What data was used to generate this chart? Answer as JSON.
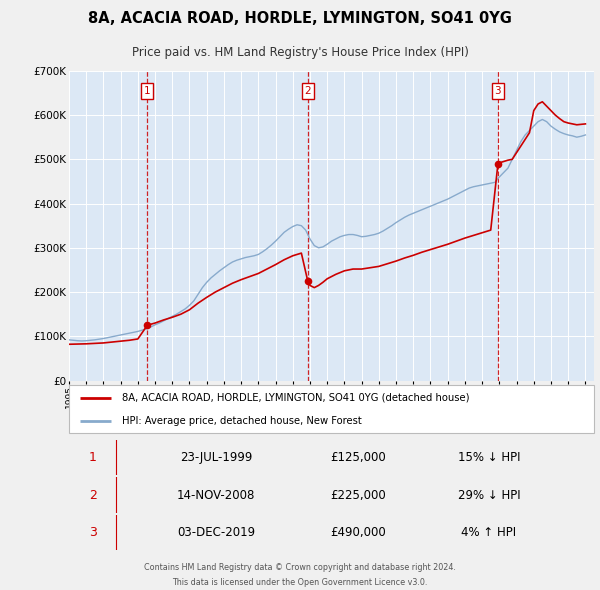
{
  "title": "8A, ACACIA ROAD, HORDLE, LYMINGTON, SO41 0YG",
  "subtitle": "Price paid vs. HM Land Registry's House Price Index (HPI)",
  "ylim": [
    0,
    700000
  ],
  "yticks": [
    0,
    100000,
    200000,
    300000,
    400000,
    500000,
    600000,
    700000
  ],
  "ytick_labels": [
    "£0",
    "£100K",
    "£200K",
    "£300K",
    "£400K",
    "£500K",
    "£600K",
    "£700K"
  ],
  "xlim_start": 1995.0,
  "xlim_end": 2025.5,
  "bg_color": "#f0f0f0",
  "plot_bg_color": "#dce8f5",
  "grid_color": "#ffffff",
  "sale_color": "#cc0000",
  "hpi_color": "#88aacc",
  "sale_label": "8A, ACACIA ROAD, HORDLE, LYMINGTON, SO41 0YG (detached house)",
  "hpi_label": "HPI: Average price, detached house, New Forest",
  "transactions": [
    {
      "num": 1,
      "date": "23-JUL-1999",
      "price": 125000,
      "pct": "15%",
      "dir": "↓",
      "x": 1999.55
    },
    {
      "num": 2,
      "date": "14-NOV-2008",
      "price": 225000,
      "pct": "29%",
      "dir": "↓",
      "x": 2008.87
    },
    {
      "num": 3,
      "date": "03-DEC-2019",
      "price": 490000,
      "pct": "4%",
      "dir": "↑",
      "x": 2019.92
    }
  ],
  "footer1": "Contains HM Land Registry data © Crown copyright and database right 2024.",
  "footer2": "This data is licensed under the Open Government Licence v3.0.",
  "hpi_data": [
    [
      1995.0,
      92000
    ],
    [
      1995.25,
      91000
    ],
    [
      1995.5,
      90000
    ],
    [
      1995.75,
      89500
    ],
    [
      1996.0,
      90000
    ],
    [
      1996.25,
      91000
    ],
    [
      1996.5,
      92000
    ],
    [
      1996.75,
      93500
    ],
    [
      1997.0,
      95000
    ],
    [
      1997.25,
      97000
    ],
    [
      1997.5,
      99000
    ],
    [
      1997.75,
      101000
    ],
    [
      1998.0,
      103000
    ],
    [
      1998.25,
      105000
    ],
    [
      1998.5,
      107000
    ],
    [
      1998.75,
      109000
    ],
    [
      1999.0,
      111000
    ],
    [
      1999.25,
      114000
    ],
    [
      1999.5,
      117000
    ],
    [
      1999.75,
      121000
    ],
    [
      2000.0,
      126000
    ],
    [
      2000.25,
      130000
    ],
    [
      2000.5,
      135000
    ],
    [
      2000.75,
      140000
    ],
    [
      2001.0,
      145000
    ],
    [
      2001.25,
      150000
    ],
    [
      2001.5,
      156000
    ],
    [
      2001.75,
      162000
    ],
    [
      2002.0,
      170000
    ],
    [
      2002.25,
      180000
    ],
    [
      2002.5,
      195000
    ],
    [
      2002.75,
      210000
    ],
    [
      2003.0,
      222000
    ],
    [
      2003.25,
      232000
    ],
    [
      2003.5,
      240000
    ],
    [
      2003.75,
      248000
    ],
    [
      2004.0,
      255000
    ],
    [
      2004.25,
      262000
    ],
    [
      2004.5,
      268000
    ],
    [
      2004.75,
      272000
    ],
    [
      2005.0,
      275000
    ],
    [
      2005.25,
      278000
    ],
    [
      2005.5,
      280000
    ],
    [
      2005.75,
      282000
    ],
    [
      2006.0,
      285000
    ],
    [
      2006.25,
      291000
    ],
    [
      2006.5,
      298000
    ],
    [
      2006.75,
      306000
    ],
    [
      2007.0,
      315000
    ],
    [
      2007.25,
      325000
    ],
    [
      2007.5,
      335000
    ],
    [
      2007.75,
      342000
    ],
    [
      2008.0,
      348000
    ],
    [
      2008.25,
      352000
    ],
    [
      2008.5,
      350000
    ],
    [
      2008.75,
      340000
    ],
    [
      2009.0,
      320000
    ],
    [
      2009.25,
      305000
    ],
    [
      2009.5,
      300000
    ],
    [
      2009.75,
      302000
    ],
    [
      2010.0,
      308000
    ],
    [
      2010.25,
      315000
    ],
    [
      2010.5,
      320000
    ],
    [
      2010.75,
      325000
    ],
    [
      2011.0,
      328000
    ],
    [
      2011.25,
      330000
    ],
    [
      2011.5,
      330000
    ],
    [
      2011.75,
      328000
    ],
    [
      2012.0,
      325000
    ],
    [
      2012.25,
      326000
    ],
    [
      2012.5,
      328000
    ],
    [
      2012.75,
      330000
    ],
    [
      2013.0,
      333000
    ],
    [
      2013.25,
      338000
    ],
    [
      2013.5,
      344000
    ],
    [
      2013.75,
      350000
    ],
    [
      2014.0,
      357000
    ],
    [
      2014.25,
      363000
    ],
    [
      2014.5,
      369000
    ],
    [
      2014.75,
      374000
    ],
    [
      2015.0,
      378000
    ],
    [
      2015.25,
      382000
    ],
    [
      2015.5,
      386000
    ],
    [
      2015.75,
      390000
    ],
    [
      2016.0,
      394000
    ],
    [
      2016.25,
      398000
    ],
    [
      2016.5,
      402000
    ],
    [
      2016.75,
      406000
    ],
    [
      2017.0,
      410000
    ],
    [
      2017.25,
      415000
    ],
    [
      2017.5,
      420000
    ],
    [
      2017.75,
      425000
    ],
    [
      2018.0,
      430000
    ],
    [
      2018.25,
      435000
    ],
    [
      2018.5,
      438000
    ],
    [
      2018.75,
      440000
    ],
    [
      2019.0,
      442000
    ],
    [
      2019.25,
      444000
    ],
    [
      2019.5,
      446000
    ],
    [
      2019.75,
      448000
    ],
    [
      2020.0,
      460000
    ],
    [
      2020.25,
      470000
    ],
    [
      2020.5,
      480000
    ],
    [
      2020.75,
      500000
    ],
    [
      2021.0,
      520000
    ],
    [
      2021.25,
      540000
    ],
    [
      2021.5,
      555000
    ],
    [
      2021.75,
      565000
    ],
    [
      2022.0,
      575000
    ],
    [
      2022.25,
      585000
    ],
    [
      2022.5,
      590000
    ],
    [
      2022.75,
      585000
    ],
    [
      2023.0,
      575000
    ],
    [
      2023.25,
      568000
    ],
    [
      2023.5,
      562000
    ],
    [
      2023.75,
      558000
    ],
    [
      2024.0,
      555000
    ],
    [
      2024.25,
      553000
    ],
    [
      2024.5,
      550000
    ],
    [
      2024.75,
      552000
    ],
    [
      2025.0,
      555000
    ]
  ],
  "sale_data": [
    [
      1995.0,
      82000
    ],
    [
      1995.5,
      82500
    ],
    [
      1996.0,
      83000
    ],
    [
      1996.5,
      84000
    ],
    [
      1997.0,
      85000
    ],
    [
      1997.5,
      87000
    ],
    [
      1998.0,
      89000
    ],
    [
      1998.5,
      91000
    ],
    [
      1999.0,
      94000
    ],
    [
      1999.55,
      125000
    ],
    [
      2000.0,
      130000
    ],
    [
      2000.5,
      137000
    ],
    [
      2001.0,
      143000
    ],
    [
      2001.5,
      150000
    ],
    [
      2002.0,
      160000
    ],
    [
      2002.5,
      175000
    ],
    [
      2003.0,
      188000
    ],
    [
      2003.5,
      200000
    ],
    [
      2004.0,
      210000
    ],
    [
      2004.5,
      220000
    ],
    [
      2005.0,
      228000
    ],
    [
      2005.5,
      235000
    ],
    [
      2006.0,
      242000
    ],
    [
      2006.5,
      252000
    ],
    [
      2007.0,
      262000
    ],
    [
      2007.5,
      273000
    ],
    [
      2008.0,
      282000
    ],
    [
      2008.5,
      288000
    ],
    [
      2008.87,
      225000
    ],
    [
      2009.0,
      215000
    ],
    [
      2009.25,
      210000
    ],
    [
      2009.5,
      215000
    ],
    [
      2009.75,
      222000
    ],
    [
      2010.0,
      230000
    ],
    [
      2010.5,
      240000
    ],
    [
      2011.0,
      248000
    ],
    [
      2011.5,
      252000
    ],
    [
      2012.0,
      252000
    ],
    [
      2012.5,
      255000
    ],
    [
      2013.0,
      258000
    ],
    [
      2013.5,
      264000
    ],
    [
      2014.0,
      270000
    ],
    [
      2014.5,
      277000
    ],
    [
      2015.0,
      283000
    ],
    [
      2015.5,
      290000
    ],
    [
      2016.0,
      296000
    ],
    [
      2016.5,
      302000
    ],
    [
      2017.0,
      308000
    ],
    [
      2017.5,
      315000
    ],
    [
      2018.0,
      322000
    ],
    [
      2018.5,
      328000
    ],
    [
      2019.0,
      334000
    ],
    [
      2019.5,
      340000
    ],
    [
      2019.92,
      490000
    ],
    [
      2020.0,
      492000
    ],
    [
      2020.25,
      495000
    ],
    [
      2020.5,
      498000
    ],
    [
      2020.75,
      500000
    ],
    [
      2021.0,
      515000
    ],
    [
      2021.25,
      530000
    ],
    [
      2021.5,
      545000
    ],
    [
      2021.75,
      560000
    ],
    [
      2022.0,
      610000
    ],
    [
      2022.25,
      625000
    ],
    [
      2022.5,
      630000
    ],
    [
      2022.75,
      620000
    ],
    [
      2023.0,
      610000
    ],
    [
      2023.25,
      600000
    ],
    [
      2023.5,
      592000
    ],
    [
      2023.75,
      585000
    ],
    [
      2024.0,
      582000
    ],
    [
      2024.5,
      578000
    ],
    [
      2025.0,
      580000
    ]
  ]
}
